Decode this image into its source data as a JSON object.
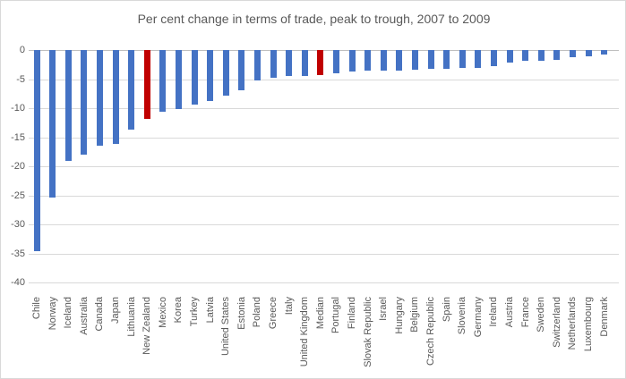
{
  "chart": {
    "title": "Per cent change in terms of trade, peak to trough, 2007 to 2009",
    "colors": {
      "bar": "#4472c4",
      "highlight": "#c00000",
      "gridline": "#d9d9d9",
      "zero_line": "#bfbfbf",
      "text": "#595959",
      "border": "#d9d9d9",
      "background": "#ffffff"
    }
  },
  "chart_data": {
    "type": "bar",
    "title": "Per cent change in terms of trade, peak to trough, 2007 to 2009",
    "xlabel": "",
    "ylabel": "",
    "ylim": [
      -40,
      0
    ],
    "yticks": [
      0,
      -5,
      -10,
      -15,
      -20,
      -25,
      -30,
      -35,
      -40
    ],
    "grid": true,
    "legend": false,
    "x_label_rotation": 90,
    "highlighted_categories": [
      "New Zealand",
      "Median"
    ],
    "categories": [
      "Chile",
      "Norway",
      "Iceland",
      "Australia",
      "Canada",
      "Japan",
      "Lithuania",
      "New Zealand",
      "Mexico",
      "Korea",
      "Turkey",
      "Latvia",
      "United States",
      "Estonia",
      "Poland",
      "Greece",
      "Italy",
      "United Kingdom",
      "Median",
      "Portugal",
      "Finland",
      "Slovak Republic",
      "Israel",
      "Hungary",
      "Belgium",
      "Czech Republic",
      "Spain",
      "Slovenia",
      "Germany",
      "Ireland",
      "Austria",
      "France",
      "Sweden",
      "Switzerland",
      "Netherlands",
      "Luxembourg",
      "Denmark"
    ],
    "values": [
      -34.5,
      -25.3,
      -19.0,
      -17.9,
      -16.5,
      -16.2,
      -13.7,
      -11.9,
      -10.6,
      -10.2,
      -9.3,
      -8.8,
      -7.9,
      -6.9,
      -5.2,
      -4.8,
      -4.5,
      -4.4,
      -4.3,
      -4.0,
      -3.7,
      -3.6,
      -3.6,
      -3.5,
      -3.4,
      -3.3,
      -3.2,
      -3.1,
      -3.0,
      -2.7,
      -2.2,
      -1.9,
      -1.8,
      -1.7,
      -1.2,
      -1.0,
      -0.7
    ]
  }
}
